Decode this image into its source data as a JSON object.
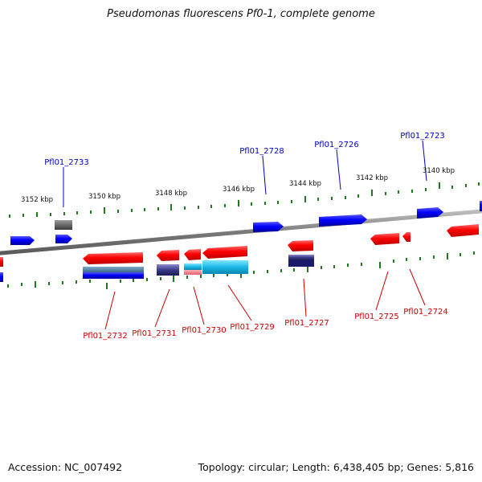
{
  "title": "Pseudomonas fluorescens Pf0-1, complete genome",
  "accession": "Accession: NC_007492",
  "genome_info": "Topology: circular; Length: 6,438,405 bp; Genes: 5,816",
  "colors": {
    "top_label": "#0000bb",
    "bottom_label": "#cc0000",
    "tick": "#1f7a1f",
    "backbone": "#808080",
    "forward_gene": "#0000ff",
    "reverse_gene": "#ff0000"
  },
  "scale_labels": [
    "3152 kbp",
    "3150 kbp",
    "3148 kbp",
    "3146 kbp",
    "3144 kbp",
    "3142 kbp",
    "3140 kbp"
  ],
  "top_gene_labels": [
    "Pfl01_2733",
    "Pfl01_2728",
    "Pfl01_2726",
    "Pfl01_2723"
  ],
  "bottom_gene_labels": [
    "Pfl01_2732",
    "Pfl01_2731",
    "Pfl01_2730",
    "Pfl01_2729",
    "Pfl01_2727",
    "Pfl01_2725",
    "Pfl01_2724"
  ]
}
